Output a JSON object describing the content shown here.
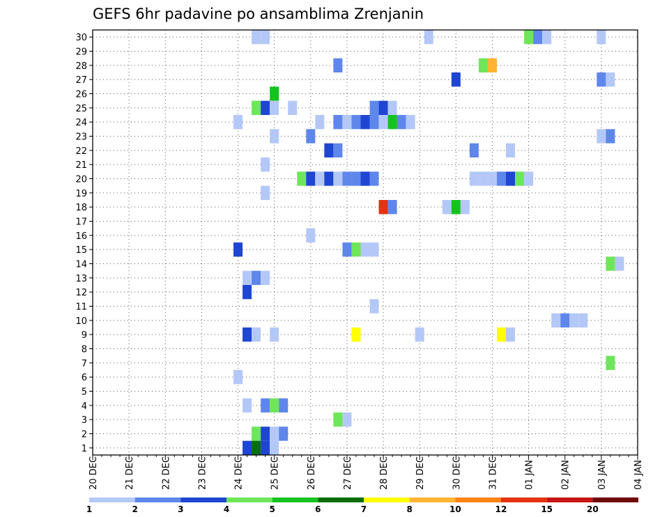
{
  "chart_data": {
    "type": "heatmap",
    "title": "GEFS 6hr padavine po ansamblima Zrenjanin",
    "xlabel": "",
    "ylabel": "",
    "x_ticks": [
      "20 DEC",
      "21 DEC",
      "22 DEC",
      "23 DEC",
      "24 DEC",
      "25 DEC",
      "26 DEC",
      "27 DEC",
      "28 DEC",
      "29 DEC",
      "30 DEC",
      "31 DEC",
      "01 JAN",
      "02 JAN",
      "03 JAN",
      "04 JAN"
    ],
    "y_ticks": [
      1,
      2,
      3,
      4,
      5,
      6,
      7,
      8,
      9,
      10,
      11,
      12,
      13,
      14,
      15,
      16,
      17,
      18,
      19,
      20,
      21,
      22,
      23,
      24,
      25,
      26,
      27,
      28,
      29,
      30
    ],
    "xlim": [
      0,
      60
    ],
    "ylim": [
      0.5,
      30.5
    ],
    "x_unit": "6-hour steps from 20 DEC 00Z",
    "legend": {
      "boundaries": [
        "1",
        "2",
        "3",
        "4",
        "5",
        "6",
        "7",
        "8",
        "10",
        "12",
        "15",
        "20"
      ],
      "colors": [
        "#b4c8f8",
        "#5f87eb",
        "#1e46d2",
        "#6ee65a",
        "#14c31e",
        "#0a6e0a",
        "#ffff00",
        "#ffb432",
        "#ff8214",
        "#e6320f",
        "#c81414",
        "#6e0a0a"
      ]
    },
    "cell_values_desc": "each entry is [ensemble member, 6h step index, precipitation class 1-12]",
    "cells": [
      [
        30,
        18,
        1
      ],
      [
        30,
        19,
        1
      ],
      [
        30,
        37,
        1
      ],
      [
        30,
        48,
        4
      ],
      [
        30,
        49,
        2
      ],
      [
        30,
        50,
        1
      ],
      [
        30,
        56,
        1
      ],
      [
        28,
        27,
        2
      ],
      [
        28,
        43,
        4
      ],
      [
        28,
        44,
        8
      ],
      [
        27,
        40,
        3
      ],
      [
        27,
        56,
        2
      ],
      [
        27,
        57,
        1
      ],
      [
        26,
        20,
        5
      ],
      [
        25,
        18,
        4
      ],
      [
        25,
        19,
        3
      ],
      [
        25,
        20,
        1
      ],
      [
        25,
        22,
        1
      ],
      [
        25,
        31,
        2
      ],
      [
        25,
        32,
        3
      ],
      [
        25,
        33,
        1
      ],
      [
        24,
        16,
        1
      ],
      [
        24,
        25,
        1
      ],
      [
        24,
        27,
        2
      ],
      [
        24,
        28,
        1
      ],
      [
        24,
        29,
        2
      ],
      [
        24,
        30,
        3
      ],
      [
        24,
        31,
        2
      ],
      [
        24,
        32,
        1
      ],
      [
        24,
        33,
        5
      ],
      [
        24,
        34,
        2
      ],
      [
        24,
        35,
        1
      ],
      [
        23,
        20,
        1
      ],
      [
        23,
        24,
        2
      ],
      [
        23,
        56,
        1
      ],
      [
        23,
        57,
        2
      ],
      [
        22,
        26,
        3
      ],
      [
        22,
        27,
        2
      ],
      [
        22,
        42,
        2
      ],
      [
        22,
        46,
        1
      ],
      [
        21,
        19,
        1
      ],
      [
        20,
        23,
        4
      ],
      [
        20,
        24,
        3
      ],
      [
        20,
        25,
        1
      ],
      [
        20,
        26,
        3
      ],
      [
        20,
        27,
        1
      ],
      [
        20,
        28,
        2
      ],
      [
        20,
        29,
        2
      ],
      [
        20,
        30,
        3
      ],
      [
        20,
        31,
        2
      ],
      [
        20,
        42,
        1
      ],
      [
        20,
        43,
        1
      ],
      [
        20,
        44,
        1
      ],
      [
        20,
        45,
        2
      ],
      [
        20,
        46,
        3
      ],
      [
        20,
        47,
        4
      ],
      [
        20,
        48,
        1
      ],
      [
        19,
        19,
        1
      ],
      [
        18,
        32,
        10
      ],
      [
        18,
        33,
        2
      ],
      [
        18,
        39,
        1
      ],
      [
        18,
        40,
        5
      ],
      [
        18,
        41,
        1
      ],
      [
        16,
        24,
        1
      ],
      [
        15,
        16,
        3
      ],
      [
        15,
        28,
        2
      ],
      [
        15,
        29,
        4
      ],
      [
        15,
        30,
        1
      ],
      [
        15,
        31,
        1
      ],
      [
        14,
        57,
        4
      ],
      [
        14,
        58,
        1
      ],
      [
        13,
        17,
        1
      ],
      [
        13,
        18,
        2
      ],
      [
        13,
        19,
        1
      ],
      [
        12,
        17,
        3
      ],
      [
        11,
        31,
        1
      ],
      [
        10,
        51,
        1
      ],
      [
        10,
        52,
        2
      ],
      [
        10,
        53,
        1
      ],
      [
        10,
        54,
        1
      ],
      [
        9,
        17,
        3
      ],
      [
        9,
        18,
        1
      ],
      [
        9,
        20,
        1
      ],
      [
        9,
        29,
        7
      ],
      [
        9,
        36,
        1
      ],
      [
        9,
        45,
        7
      ],
      [
        9,
        46,
        1
      ],
      [
        7,
        57,
        4
      ],
      [
        6,
        16,
        1
      ],
      [
        4,
        17,
        1
      ],
      [
        4,
        19,
        2
      ],
      [
        4,
        20,
        4
      ],
      [
        4,
        21,
        2
      ],
      [
        3,
        27,
        4
      ],
      [
        3,
        28,
        1
      ],
      [
        2,
        18,
        4
      ],
      [
        2,
        19,
        3
      ],
      [
        2,
        20,
        1
      ],
      [
        2,
        21,
        2
      ],
      [
        1,
        17,
        3
      ],
      [
        1,
        18,
        6
      ],
      [
        1,
        19,
        3
      ],
      [
        1,
        20,
        1
      ]
    ]
  }
}
